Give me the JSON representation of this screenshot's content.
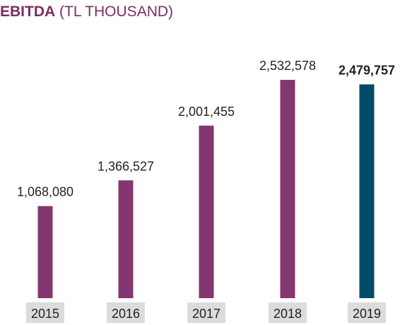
{
  "title": {
    "main": "EBITDA",
    "sub": "(TL THOUSAND)",
    "color": "#7a2e5e"
  },
  "chart_data": {
    "type": "bar",
    "categories": [
      "2015",
      "2016",
      "2017",
      "2018",
      "2019"
    ],
    "values": [
      1068080,
      1366527,
      2001455,
      2532578,
      2479757
    ],
    "data_labels": [
      "1,068,080",
      "1,366,527",
      "2,001,455",
      "2,532,578",
      "2,479,757"
    ],
    "highlight_index": 4,
    "ylim": [
      0,
      2740000
    ],
    "grid": false,
    "colors": {
      "bar": "#84366f",
      "highlight_bar": "#004b68",
      "label_text": "#231f20",
      "category_bg": "#dcdcdc"
    }
  }
}
